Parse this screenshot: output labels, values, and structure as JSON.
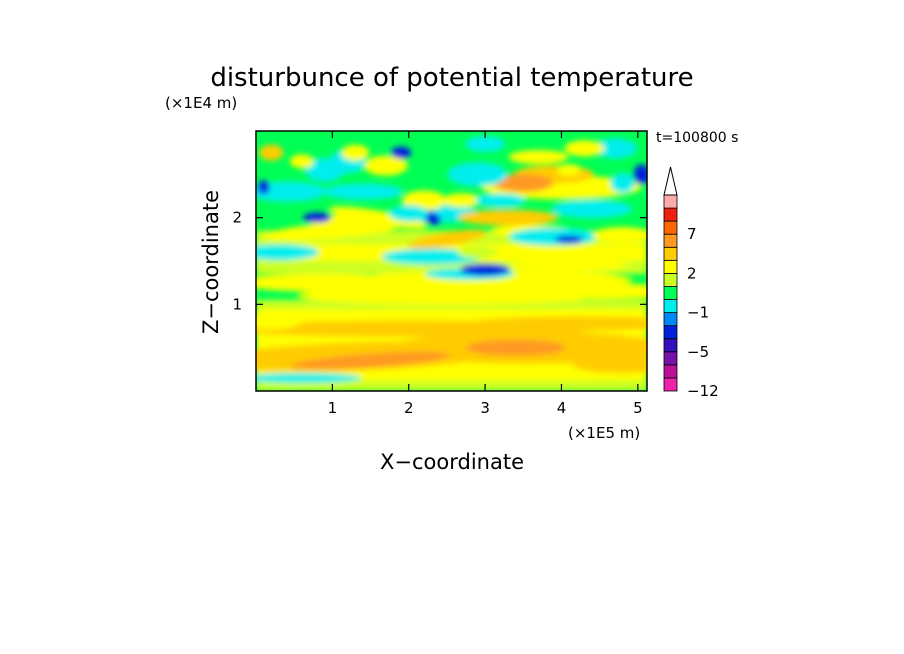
{
  "chart_data": {
    "type": "heatmap",
    "title": "disturbunce of potential temperature",
    "xlabel": "X−coordinate",
    "ylabel": "Z−coordinate",
    "x_unit": "(×1E5 m)",
    "y_unit": "(×1E4 m)",
    "time_label": "t=100800 s",
    "xlim": [
      0,
      5.12
    ],
    "ylim": [
      0,
      3.0
    ],
    "x_ticks": [
      {
        "value": 1,
        "label": "1"
      },
      {
        "value": 2,
        "label": "2"
      },
      {
        "value": 3,
        "label": "3"
      },
      {
        "value": 4,
        "label": "4"
      },
      {
        "value": 5,
        "label": "5"
      }
    ],
    "y_ticks": [
      {
        "value": 1,
        "label": "1"
      },
      {
        "value": 2,
        "label": "2"
      }
    ],
    "colorbar": {
      "levels": [
        -12,
        -9,
        -7,
        -5,
        -4,
        -2,
        -1,
        0,
        1,
        2,
        3,
        5,
        7,
        9,
        11
      ],
      "colors": [
        "#ee22aa",
        "#bb1199",
        "#7711aa",
        "#3311bb",
        "#0022dd",
        "#0088ff",
        "#00eeee",
        "#00ff55",
        "#ccff22",
        "#ffff00",
        "#ffcc00",
        "#ff9922",
        "#ff6600",
        "#ee2211",
        "#ffaaaa"
      ],
      "extend_max": true,
      "tick_labels": [
        {
          "level": 7,
          "label": "7"
        },
        {
          "level": 2,
          "label": "2"
        },
        {
          "level": -1,
          "label": "−1"
        },
        {
          "level": -5,
          "label": "−5"
        },
        {
          "level": -12,
          "label": "−12"
        }
      ]
    }
  }
}
